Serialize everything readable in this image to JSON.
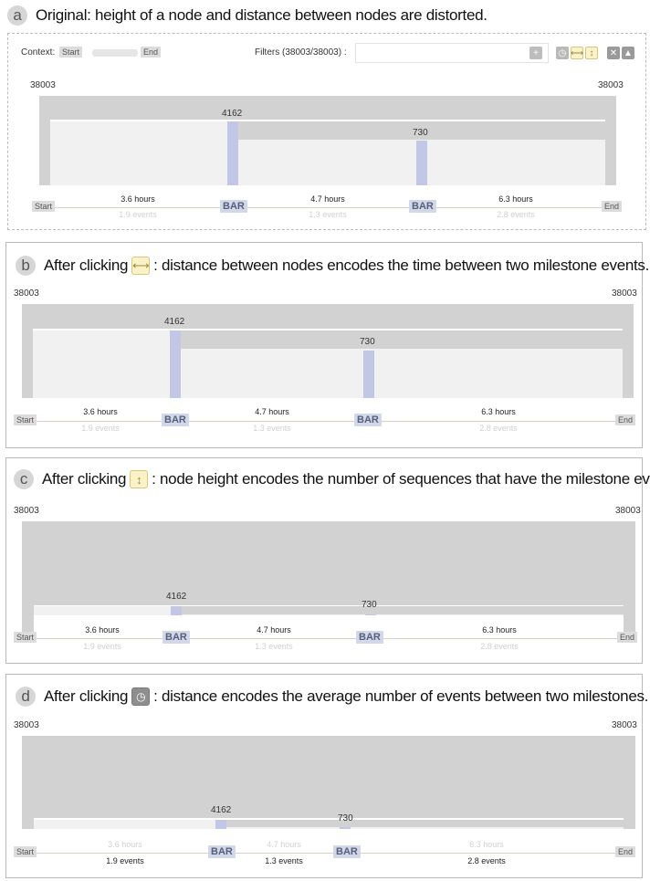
{
  "colors": {
    "node": "#c3c7e6",
    "bar": "#d2d2d2",
    "bg": "#f1f1f1"
  },
  "panels": [
    {
      "letter": "a",
      "caption": "Original: height of a node and distance between nodes are distorted.",
      "context_label": "Context:",
      "start_tag": "Start",
      "end_tag": "End",
      "filters_label": "Filters (38003/38003) :"
    },
    {
      "letter": "b",
      "caption_pre": "After clicking",
      "caption_post": ": distance between nodes encodes the time between two milestone events.",
      "icon": "horizontal-distance-icon"
    },
    {
      "letter": "c",
      "caption_pre": "After clicking",
      "caption_post": ": node height encodes the number of sequences that have the milestone event.",
      "icon": "vertical-height-icon"
    },
    {
      "letter": "d",
      "caption_pre": "After clicking",
      "caption_post": ": distance encodes the average number of events between two milestones.",
      "icon": "clock-icon"
    }
  ],
  "diagram": {
    "total": "38003",
    "node1": "4162",
    "node2": "730",
    "start": "Start",
    "end": "End",
    "bar": "BAR",
    "seg1_hours": "3.6 hours",
    "seg1_events": "1.9 events",
    "seg2_hours": "4.7 hours",
    "seg2_events": "1.3 events",
    "seg3_hours": "6.3 hours",
    "seg3_events": "2.8 events"
  }
}
